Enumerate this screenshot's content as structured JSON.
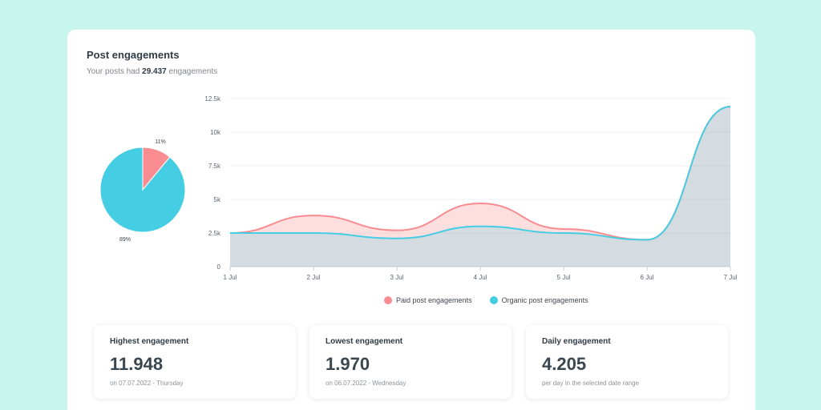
{
  "card": {
    "title": "Post engagements",
    "subtitle_prefix": "Your posts had ",
    "subtitle_value": "29.437",
    "subtitle_suffix": " engagements"
  },
  "colors": {
    "paid": "#f98c91",
    "organic": "#45cde3",
    "background": "#c9f6ec"
  },
  "chart_data": [
    {
      "type": "pie",
      "slices": [
        {
          "label": "11%",
          "value": 11,
          "color": "#f98c91"
        },
        {
          "label": "89%",
          "value": 89,
          "color": "#45cde3"
        }
      ]
    },
    {
      "type": "area",
      "categories": [
        "1 Jul",
        "2 Jul",
        "3 Jul",
        "4 Jul",
        "5 Jul",
        "6 Jul",
        "7 Jul"
      ],
      "y_ticks": [
        "0",
        "2.5k",
        "5k",
        "7.5k",
        "10k",
        "12.5k"
      ],
      "ylim": [
        0,
        12500
      ],
      "grid": true,
      "legend_position": "bottom",
      "series": [
        {
          "name": "Paid post engagements",
          "color": "#f98c91",
          "values": [
            2500,
            3800,
            2700,
            4700,
            2800,
            2000,
            11900
          ]
        },
        {
          "name": "Organic post engagements",
          "color": "#45cde3",
          "values": [
            2500,
            2500,
            2100,
            3000,
            2500,
            2000,
            11900
          ]
        }
      ]
    }
  ],
  "stats": [
    {
      "label": "Highest engagement",
      "value": "11.948",
      "note": "on 07.07.2022 - Thursday"
    },
    {
      "label": "Lowest engagement",
      "value": "1.970",
      "note": "on 06.07.2022 - Wednesday"
    },
    {
      "label": "Daily engagement",
      "value": "4.205",
      "note": "per day in the selected date range"
    }
  ]
}
